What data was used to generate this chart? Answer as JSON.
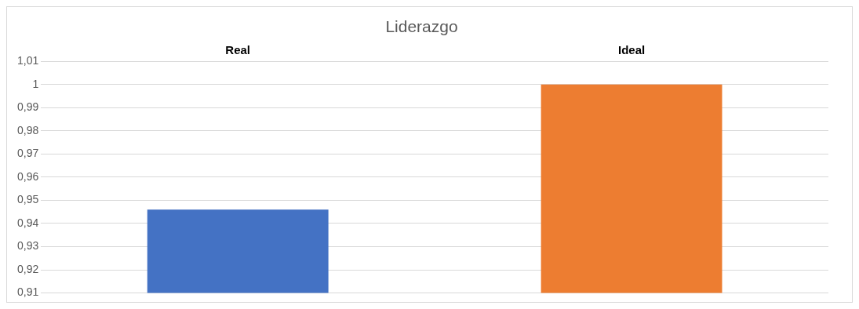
{
  "chart_data": {
    "type": "bar",
    "title": "Liderazgo",
    "categories": [
      "Real",
      "Ideal"
    ],
    "values": [
      0.946,
      1
    ],
    "colors": [
      "#4472c4",
      "#ed7d31"
    ],
    "ylim": [
      0.91,
      1.01
    ],
    "yticks": [
      {
        "value": 0.91,
        "label": "0,91"
      },
      {
        "value": 0.92,
        "label": "0,92"
      },
      {
        "value": 0.93,
        "label": "0,93"
      },
      {
        "value": 0.94,
        "label": "0,94"
      },
      {
        "value": 0.95,
        "label": "0,95"
      },
      {
        "value": 0.96,
        "label": "0,96"
      },
      {
        "value": 0.97,
        "label": "0,97"
      },
      {
        "value": 0.98,
        "label": "0,98"
      },
      {
        "value": 0.99,
        "label": "0,99"
      },
      {
        "value": 1,
        "label": "1"
      },
      {
        "value": 1.01,
        "label": "1,01"
      }
    ],
    "grid": "y",
    "legend": false
  }
}
